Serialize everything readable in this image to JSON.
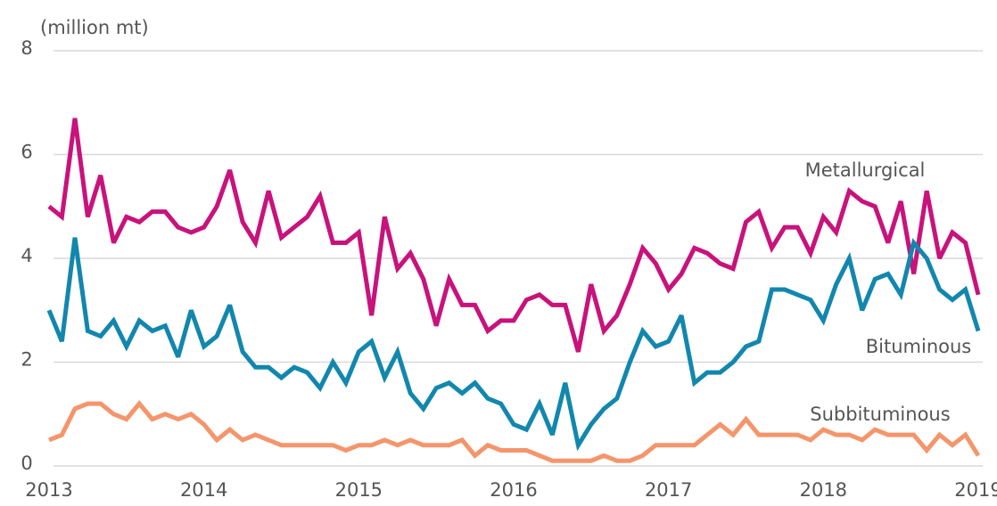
{
  "chart_data": {
    "type": "line",
    "y_label": "(million mt)",
    "x": [
      2013,
      2013.083,
      2013.167,
      2013.25,
      2013.333,
      2013.417,
      2013.5,
      2013.583,
      2013.667,
      2013.75,
      2013.833,
      2013.917,
      2014,
      2014.083,
      2014.167,
      2014.25,
      2014.333,
      2014.417,
      2014.5,
      2014.583,
      2014.667,
      2014.75,
      2014.833,
      2014.917,
      2015,
      2015.083,
      2015.167,
      2015.25,
      2015.333,
      2015.417,
      2015.5,
      2015.583,
      2015.667,
      2015.75,
      2015.833,
      2015.917,
      2016,
      2016.083,
      2016.167,
      2016.25,
      2016.333,
      2016.417,
      2016.5,
      2016.583,
      2016.667,
      2016.75,
      2016.833,
      2016.917,
      2017,
      2017.083,
      2017.167,
      2017.25,
      2017.333,
      2017.417,
      2017.5,
      2017.583,
      2017.667,
      2017.75,
      2017.833,
      2017.917,
      2018,
      2018.083,
      2018.167,
      2018.25,
      2018.333,
      2018.417,
      2018.5,
      2018.583,
      2018.667,
      2018.75,
      2018.833,
      2018.917,
      2019
    ],
    "series": [
      {
        "name": "Metallurgical",
        "color": "#c8127c",
        "values": [
          5.0,
          4.8,
          6.7,
          4.8,
          5.6,
          4.3,
          4.8,
          4.7,
          4.9,
          4.9,
          4.6,
          4.5,
          4.6,
          5.0,
          5.7,
          4.7,
          4.3,
          5.3,
          4.4,
          4.6,
          4.8,
          5.2,
          4.3,
          4.3,
          4.5,
          2.9,
          4.8,
          3.8,
          4.1,
          3.6,
          2.7,
          3.6,
          3.1,
          3.1,
          2.6,
          2.8,
          2.8,
          3.2,
          3.3,
          3.1,
          3.1,
          2.2,
          3.5,
          2.6,
          2.9,
          3.5,
          4.2,
          3.9,
          3.4,
          3.7,
          4.2,
          4.1,
          3.9,
          3.8,
          4.7,
          4.9,
          4.2,
          4.6,
          4.6,
          4.1,
          4.8,
          4.5,
          5.3,
          5.1,
          5.0,
          4.3,
          5.1,
          3.7,
          5.3,
          4.0,
          4.5,
          4.3,
          3.3
        ]
      },
      {
        "name": "Bituminous",
        "color": "#1287ae",
        "values": [
          3.0,
          2.4,
          4.4,
          2.6,
          2.5,
          2.8,
          2.3,
          2.8,
          2.6,
          2.7,
          2.1,
          3.0,
          2.3,
          2.5,
          3.1,
          2.2,
          1.9,
          1.9,
          1.7,
          1.9,
          1.8,
          1.5,
          2.0,
          1.6,
          2.2,
          2.4,
          1.7,
          2.2,
          1.4,
          1.1,
          1.5,
          1.6,
          1.4,
          1.6,
          1.3,
          1.2,
          0.8,
          0.7,
          1.2,
          0.6,
          1.6,
          0.4,
          0.8,
          1.1,
          1.3,
          2.0,
          2.6,
          2.3,
          2.4,
          2.9,
          1.6,
          1.8,
          1.8,
          2.0,
          2.3,
          2.4,
          3.4,
          3.4,
          3.3,
          3.2,
          2.8,
          3.5,
          4.0,
          3.0,
          3.6,
          3.7,
          3.3,
          4.3,
          4.0,
          3.4,
          3.2,
          3.4,
          2.6
        ]
      },
      {
        "name": "Subbituminous",
        "color": "#f5956b",
        "values": [
          0.5,
          0.6,
          1.1,
          1.2,
          1.2,
          1.0,
          0.9,
          1.2,
          0.9,
          1.0,
          0.9,
          1.0,
          0.8,
          0.5,
          0.7,
          0.5,
          0.6,
          0.5,
          0.4,
          0.4,
          0.4,
          0.4,
          0.4,
          0.3,
          0.4,
          0.4,
          0.5,
          0.4,
          0.5,
          0.4,
          0.4,
          0.4,
          0.5,
          0.2,
          0.4,
          0.3,
          0.3,
          0.3,
          0.2,
          0.1,
          0.1,
          0.1,
          0.1,
          0.2,
          0.1,
          0.1,
          0.2,
          0.4,
          0.4,
          0.4,
          0.4,
          0.6,
          0.8,
          0.6,
          0.9,
          0.6,
          0.6,
          0.6,
          0.6,
          0.5,
          0.7,
          0.6,
          0.6,
          0.5,
          0.7,
          0.6,
          0.6,
          0.6,
          0.3,
          0.6,
          0.4,
          0.6,
          0.2
        ]
      }
    ],
    "xlim": [
      2013,
      2019
    ],
    "xticks": [
      2013,
      2014,
      2015,
      2016,
      2017,
      2018,
      2019
    ],
    "ylim": [
      0,
      8
    ],
    "yticks": [
      0,
      2,
      4,
      6,
      8
    ],
    "grid": true
  }
}
